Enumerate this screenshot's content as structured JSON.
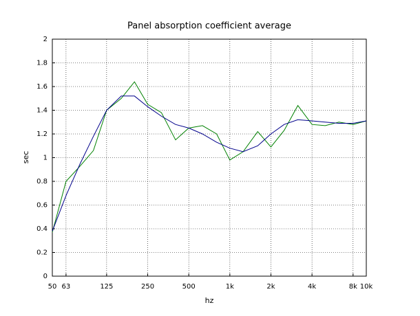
{
  "chart_data": {
    "type": "line",
    "title": "Panel absorption coefficient average",
    "xlabel": "hz",
    "ylabel": "sec",
    "xlog": true,
    "grid": true,
    "x": [
      50,
      63,
      80,
      100,
      125,
      160,
      200,
      250,
      315,
      400,
      500,
      630,
      800,
      1000,
      1250,
      1600,
      2000,
      2500,
      3150,
      4000,
      5000,
      6300,
      8000,
      10000
    ],
    "series": [
      {
        "color": "#008000",
        "values": [
          0.37,
          0.8,
          0.93,
          1.06,
          1.4,
          1.5,
          1.64,
          1.45,
          1.38,
          1.15,
          1.25,
          1.27,
          1.2,
          0.98,
          1.05,
          1.22,
          1.09,
          1.23,
          1.44,
          1.28,
          1.27,
          1.3,
          1.28,
          1.31
        ]
      },
      {
        "color": "#00008b",
        "values": [
          0.38,
          0.68,
          0.95,
          1.18,
          1.4,
          1.52,
          1.52,
          1.43,
          1.35,
          1.28,
          1.25,
          1.2,
          1.13,
          1.08,
          1.05,
          1.1,
          1.2,
          1.28,
          1.32,
          1.31,
          1.3,
          1.29,
          1.29,
          1.31
        ]
      }
    ],
    "xlim": [
      50,
      10000
    ],
    "xticks": [
      50,
      63,
      125,
      250,
      500,
      {
        "value": 1000,
        "label": "1k"
      },
      {
        "value": 2000,
        "label": "2k"
      },
      {
        "value": 4000,
        "label": "4k"
      },
      {
        "value": 8000,
        "label": "8k"
      },
      {
        "value": 10000,
        "label": "10k"
      }
    ],
    "ylim": [
      0,
      2
    ],
    "yticks": [
      0,
      0.2,
      0.4,
      0.6,
      0.8,
      1,
      1.2,
      1.4,
      1.6,
      1.8,
      2
    ]
  }
}
